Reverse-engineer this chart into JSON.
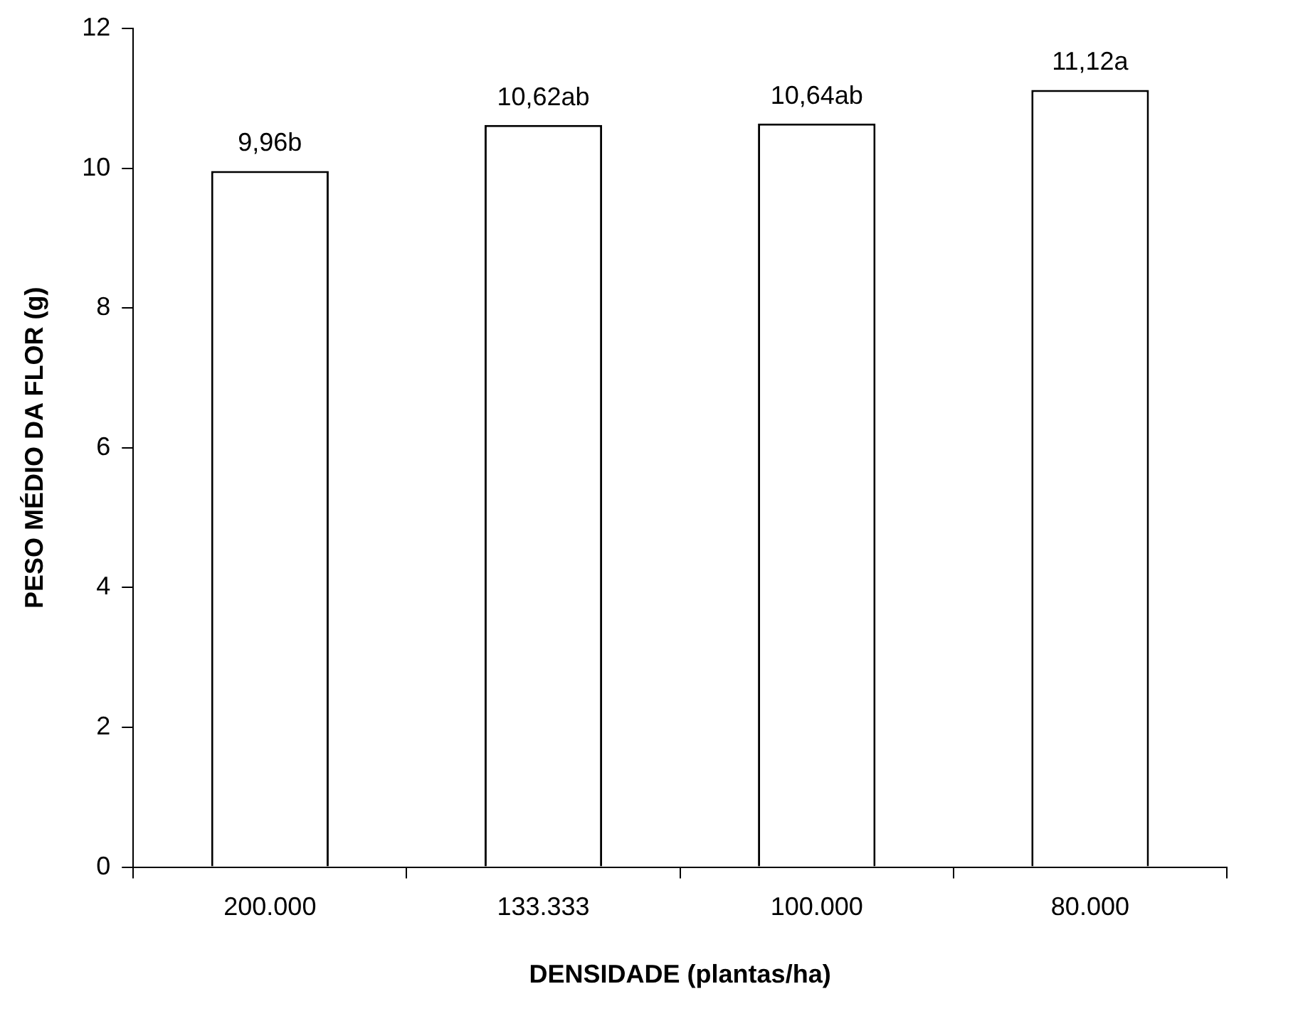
{
  "chart_data": {
    "type": "bar",
    "xlabel": "DENSIDADE (plantas/ha)",
    "ylabel": "PESO MÉDIO DA FLOR (g)",
    "categories": [
      "200.000",
      "133.333",
      "100.000",
      "80.000"
    ],
    "values": [
      9.96,
      10.62,
      10.64,
      11.12
    ],
    "value_labels": [
      "9,96b",
      "10,62ab",
      "10,64ab",
      "11,12a"
    ],
    "color": "#ffffff",
    "ylim": [
      0,
      12
    ],
    "yticks": [
      0,
      2,
      4,
      6,
      8,
      10,
      12
    ],
    "grid": false,
    "legend": false
  }
}
